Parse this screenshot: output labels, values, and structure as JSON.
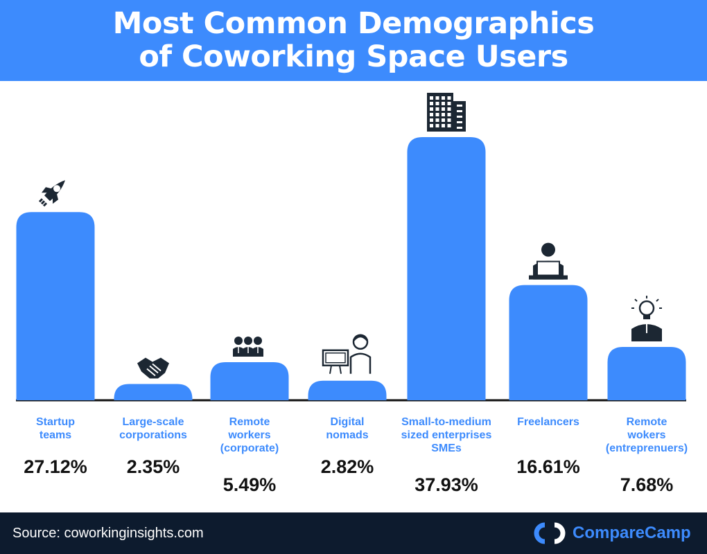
{
  "header": {
    "title_line1": "Most Common Demographics",
    "title_line2": "of Coworking Space Users"
  },
  "colors": {
    "header_bg": "#3d8bfd",
    "bar": "#3d8bfd",
    "label": "#3d8bfd",
    "value": "#111111",
    "footer_bg": "#0d1b2e"
  },
  "chart_data": {
    "type": "bar",
    "categories": [
      [
        "Startup",
        "teams"
      ],
      [
        "Large-scale",
        "corporations"
      ],
      [
        "Remote",
        "workers",
        "(corporate)"
      ],
      [
        "Digital",
        "nomads"
      ],
      [
        "Small-to-medium",
        "sized enterprises",
        "SMEs"
      ],
      [
        "Freelancers"
      ],
      [
        "Remote",
        "wokers",
        "(entreprenuers)"
      ]
    ],
    "values": [
      27.12,
      2.35,
      5.49,
      2.82,
      37.93,
      16.61,
      7.68
    ],
    "value_labels": [
      "27.12%",
      "2.35%",
      "5.49%",
      "2.82%",
      "37.93%",
      "16.61%",
      "7.68%"
    ],
    "icons": [
      "rocket-icon",
      "handshake-icon",
      "team-icon",
      "digital-nomad-icon",
      "office-building-icon",
      "freelancer-laptop-icon",
      "entrepreneur-lightbulb-icon"
    ],
    "grid": false,
    "legend": "none"
  },
  "footer": {
    "source": "Source: coworkinginsights.com",
    "brand_name": "CompareCamp"
  }
}
